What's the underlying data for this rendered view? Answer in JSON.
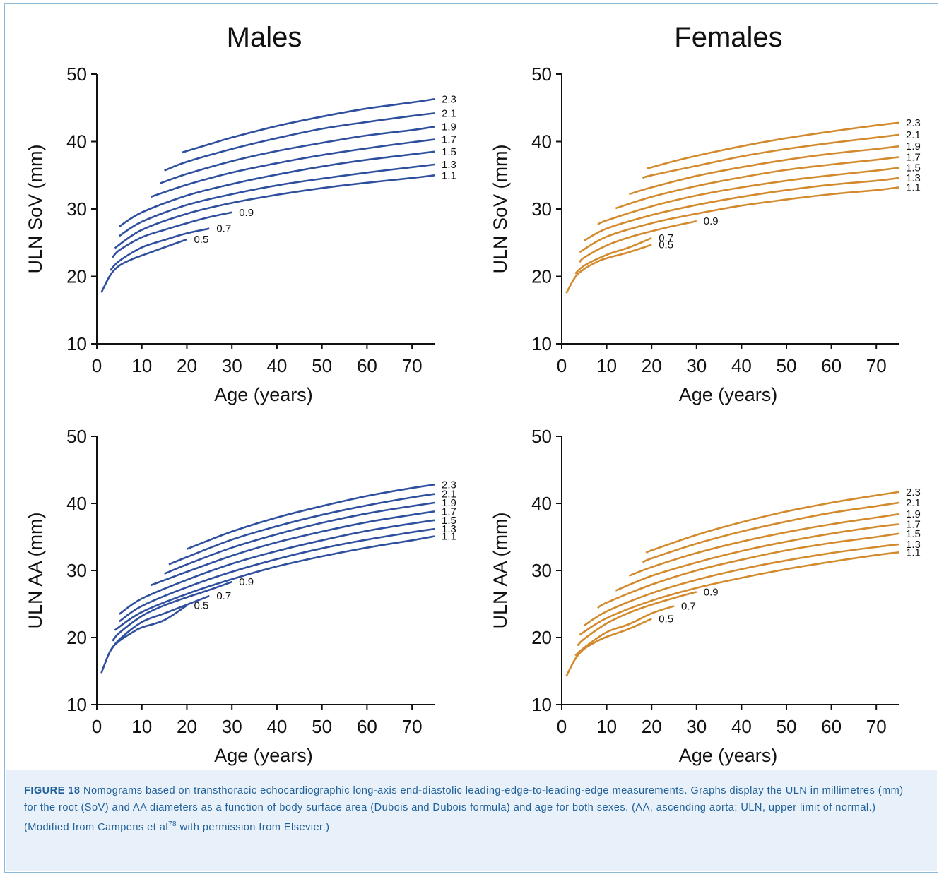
{
  "figure_label": "FIGURE 18",
  "caption": " Nomograms based on transthoracic echocardiographic long-axis end-diastolic leading-edge-to-leading-edge measurements. Graphs display the ULN in millimetres (mm) for the root (SoV) and AA diameters as a function of body surface area (Dubois and Dubois formula) and age for both sexes. (AA, ascending aorta; ULN, upper limit of normal.) (Modified from Campens et al",
  "caption_ref": "78",
  "caption_end": " with permission from Elsevier.)",
  "colors": {
    "males": "#2e4f9e",
    "females": "#d38a2c",
    "caption_bg": "#e8f1f9",
    "caption_text": "#1f5f99"
  },
  "chart_data": [
    {
      "type": "line",
      "title": "Males",
      "xlabel": "Age (years)",
      "ylabel": "ULN SoV (mm)",
      "xlim": [
        0,
        75
      ],
      "ylim": [
        10,
        50
      ],
      "xticks": [
        "0",
        "10",
        "20",
        "30",
        "40",
        "50",
        "60",
        "70"
      ],
      "yticks": [
        "10",
        "20",
        "30",
        "40",
        "50"
      ],
      "color": "#2e4f9e",
      "grid": false,
      "series": [
        {
          "name": "2.3",
          "x": [
            19,
            25,
            30,
            40,
            50,
            60,
            70,
            75
          ],
          "y": [
            38.4,
            39.6,
            40.6,
            42.3,
            43.7,
            44.9,
            45.8,
            46.3
          ]
        },
        {
          "name": "2.1",
          "x": [
            15,
            20,
            30,
            40,
            50,
            60,
            70,
            75
          ],
          "y": [
            35.7,
            37.0,
            38.9,
            40.5,
            41.9,
            42.9,
            43.8,
            44.2
          ]
        },
        {
          "name": "1.9",
          "x": [
            14,
            20,
            30,
            40,
            50,
            60,
            70,
            75
          ],
          "y": [
            33.8,
            35.2,
            37.1,
            38.6,
            39.8,
            40.9,
            41.7,
            42.2
          ]
        },
        {
          "name": "1.7",
          "x": [
            12,
            20,
            30,
            40,
            50,
            60,
            70,
            75
          ],
          "y": [
            31.8,
            33.6,
            35.4,
            36.8,
            38.0,
            39.0,
            39.9,
            40.3
          ]
        },
        {
          "name": "1.5",
          "x": [
            5,
            10,
            20,
            30,
            40,
            50,
            60,
            70,
            75
          ],
          "y": [
            27.4,
            29.5,
            32.0,
            33.7,
            35.1,
            36.3,
            37.3,
            38.1,
            38.5
          ]
        },
        {
          "name": "1.3",
          "x": [
            5,
            10,
            20,
            30,
            40,
            50,
            60,
            70,
            75
          ],
          "y": [
            26.0,
            28.1,
            30.6,
            32.2,
            33.5,
            34.5,
            35.4,
            36.2,
            36.6
          ]
        },
        {
          "name": "1.1",
          "x": [
            4,
            10,
            20,
            30,
            40,
            50,
            60,
            70,
            75
          ],
          "y": [
            24.2,
            26.9,
            29.3,
            30.9,
            32.1,
            33.1,
            33.9,
            34.6,
            35.0
          ]
        },
        {
          "name": "0.9",
          "x": [
            3.5,
            5,
            10,
            15,
            20,
            25,
            30
          ],
          "y": [
            22.8,
            23.9,
            25.8,
            26.9,
            27.9,
            28.8,
            29.5
          ]
        },
        {
          "name": "0.7",
          "x": [
            3,
            5,
            10,
            15,
            20,
            25
          ],
          "y": [
            20.9,
            22.3,
            24.3,
            25.4,
            26.4,
            27.1
          ]
        },
        {
          "name": "0.5",
          "x": [
            1,
            3,
            5,
            8,
            10,
            15,
            20
          ],
          "y": [
            17.6,
            20.2,
            21.6,
            22.6,
            23.1,
            24.3,
            25.5
          ]
        }
      ]
    },
    {
      "type": "line",
      "title": "Females",
      "xlabel": "Age (years)",
      "ylabel": "ULN SoV (mm)",
      "xlim": [
        0,
        75
      ],
      "ylim": [
        10,
        50
      ],
      "xticks": [
        "0",
        "10",
        "20",
        "30",
        "40",
        "50",
        "60",
        "70"
      ],
      "yticks": [
        "10",
        "20",
        "30",
        "40",
        "50"
      ],
      "color": "#d38a2c",
      "grid": false,
      "series": [
        {
          "name": "2.3",
          "x": [
            19,
            25,
            30,
            40,
            50,
            60,
            70,
            75
          ],
          "y": [
            36.0,
            37.1,
            37.9,
            39.3,
            40.5,
            41.5,
            42.4,
            42.8
          ]
        },
        {
          "name": "2.1",
          "x": [
            18,
            20,
            30,
            40,
            50,
            60,
            70,
            75
          ],
          "y": [
            34.6,
            35.0,
            36.4,
            37.8,
            38.9,
            39.8,
            40.6,
            41.0
          ]
        },
        {
          "name": "1.9",
          "x": [
            15,
            20,
            30,
            40,
            50,
            60,
            70,
            75
          ],
          "y": [
            32.2,
            33.2,
            34.9,
            36.2,
            37.3,
            38.2,
            38.9,
            39.3
          ]
        },
        {
          "name": "1.7",
          "x": [
            12,
            20,
            30,
            40,
            50,
            60,
            70,
            75
          ],
          "y": [
            30.1,
            31.8,
            33.4,
            34.7,
            35.8,
            36.6,
            37.3,
            37.7
          ]
        },
        {
          "name": "1.5",
          "x": [
            8,
            10,
            20,
            30,
            40,
            50,
            60,
            70,
            75
          ],
          "y": [
            27.7,
            28.3,
            30.4,
            32.0,
            33.2,
            34.2,
            35.0,
            35.7,
            36.1
          ]
        },
        {
          "name": "1.3",
          "x": [
            5,
            10,
            20,
            30,
            40,
            50,
            60,
            70,
            75
          ],
          "y": [
            25.3,
            27.1,
            29.1,
            30.6,
            31.8,
            32.8,
            33.6,
            34.2,
            34.6
          ]
        },
        {
          "name": "1.1",
          "x": [
            4,
            10,
            20,
            30,
            40,
            50,
            60,
            70,
            75
          ],
          "y": [
            23.6,
            25.9,
            27.9,
            29.3,
            30.5,
            31.4,
            32.2,
            32.8,
            33.2
          ]
        },
        {
          "name": "0.9",
          "x": [
            4,
            5,
            10,
            15,
            20,
            25,
            30
          ],
          "y": [
            22.1,
            22.8,
            24.6,
            25.8,
            26.7,
            27.5,
            28.2
          ]
        },
        {
          "name": "0.7",
          "x": [
            3,
            5,
            10,
            15,
            20
          ],
          "y": [
            20.4,
            21.6,
            23.2,
            24.3,
            25.7
          ]
        },
        {
          "name": "0.5",
          "x": [
            1,
            3,
            5,
            8,
            10,
            15,
            20
          ],
          "y": [
            17.5,
            19.9,
            21.1,
            22.2,
            22.7,
            23.6,
            24.7
          ]
        }
      ]
    },
    {
      "type": "line",
      "title": "",
      "xlabel": "Age (years)",
      "ylabel": "ULN AA (mm)",
      "xlim": [
        0,
        75
      ],
      "ylim": [
        10,
        50
      ],
      "xticks": [
        "0",
        "10",
        "20",
        "30",
        "40",
        "50",
        "60",
        "70"
      ],
      "yticks": [
        "10",
        "20",
        "30",
        "40",
        "50"
      ],
      "color": "#2e4f9e",
      "grid": false,
      "series": [
        {
          "name": "2.3",
          "x": [
            20,
            30,
            40,
            50,
            60,
            70,
            75
          ],
          "y": [
            33.2,
            35.8,
            37.9,
            39.6,
            41.1,
            42.3,
            42.8
          ]
        },
        {
          "name": "2.1",
          "x": [
            16,
            20,
            30,
            40,
            50,
            60,
            70,
            75
          ],
          "y": [
            30.9,
            32.0,
            34.6,
            36.6,
            38.3,
            39.7,
            40.9,
            41.4
          ]
        },
        {
          "name": "1.9",
          "x": [
            15,
            20,
            30,
            40,
            50,
            60,
            70,
            75
          ],
          "y": [
            29.5,
            30.9,
            33.4,
            35.4,
            37.1,
            38.5,
            39.6,
            40.1
          ]
        },
        {
          "name": "1.7",
          "x": [
            12,
            20,
            30,
            40,
            50,
            60,
            70,
            75
          ],
          "y": [
            27.8,
            29.8,
            32.2,
            34.2,
            35.8,
            37.2,
            38.3,
            38.8
          ]
        },
        {
          "name": "1.5",
          "x": [
            5,
            10,
            20,
            30,
            40,
            50,
            60,
            70,
            75
          ],
          "y": [
            23.5,
            25.8,
            28.6,
            31.0,
            32.9,
            34.5,
            35.9,
            37.0,
            37.5
          ]
        },
        {
          "name": "1.3",
          "x": [
            5,
            10,
            20,
            30,
            40,
            50,
            60,
            70,
            75
          ],
          "y": [
            22.4,
            24.7,
            27.5,
            29.8,
            31.7,
            33.3,
            34.6,
            35.7,
            36.2
          ]
        },
        {
          "name": "1.1",
          "x": [
            4,
            10,
            20,
            30,
            40,
            50,
            60,
            70,
            75
          ],
          "y": [
            21.1,
            23.8,
            26.5,
            28.7,
            30.6,
            32.1,
            33.4,
            34.5,
            35.1
          ]
        },
        {
          "name": "0.9",
          "x": [
            3.5,
            5,
            10,
            15,
            20,
            25,
            30
          ],
          "y": [
            19.5,
            20.7,
            23.2,
            24.8,
            26.0,
            27.1,
            28.3
          ]
        },
        {
          "name": "0.7",
          "x": [
            3,
            5,
            10,
            15,
            20,
            25
          ],
          "y": [
            18.0,
            19.7,
            22.3,
            23.6,
            24.9,
            26.2
          ]
        },
        {
          "name": "0.5",
          "x": [
            1,
            3,
            5,
            8,
            10,
            15,
            20
          ],
          "y": [
            14.7,
            18.0,
            19.5,
            20.8,
            21.5,
            22.6,
            24.8
          ]
        }
      ]
    },
    {
      "type": "line",
      "title": "",
      "xlabel": "Age (years)",
      "ylabel": "ULN AA (mm)",
      "xlim": [
        0,
        75
      ],
      "ylim": [
        10,
        50
      ],
      "xticks": [
        "0",
        "10",
        "20",
        "30",
        "40",
        "50",
        "60",
        "70"
      ],
      "yticks": [
        "10",
        "20",
        "30",
        "40",
        "50"
      ],
      "color": "#d38a2c",
      "grid": false,
      "series": [
        {
          "name": "2.3",
          "x": [
            19,
            20,
            30,
            40,
            50,
            60,
            70,
            75
          ],
          "y": [
            32.7,
            33.0,
            35.3,
            37.2,
            38.8,
            40.1,
            41.2,
            41.7
          ]
        },
        {
          "name": "2.1",
          "x": [
            18,
            20,
            30,
            40,
            50,
            60,
            70,
            75
          ],
          "y": [
            31.2,
            31.8,
            34.0,
            35.8,
            37.3,
            38.6,
            39.6,
            40.1
          ]
        },
        {
          "name": "1.9",
          "x": [
            15,
            20,
            30,
            40,
            50,
            60,
            70,
            75
          ],
          "y": [
            29.2,
            30.5,
            32.6,
            34.3,
            35.7,
            36.9,
            37.9,
            38.4
          ]
        },
        {
          "name": "1.7",
          "x": [
            12,
            20,
            30,
            40,
            50,
            60,
            70,
            75
          ],
          "y": [
            27.0,
            29.2,
            31.2,
            32.9,
            34.3,
            35.5,
            36.5,
            36.9
          ]
        },
        {
          "name": "1.5",
          "x": [
            8,
            10,
            20,
            30,
            40,
            50,
            60,
            70,
            75
          ],
          "y": [
            24.4,
            25.2,
            27.9,
            30.0,
            31.6,
            33.0,
            34.1,
            35.0,
            35.5
          ]
        },
        {
          "name": "1.3",
          "x": [
            5,
            10,
            20,
            30,
            40,
            50,
            60,
            70,
            75
          ],
          "y": [
            21.8,
            23.9,
            26.6,
            28.6,
            30.2,
            31.5,
            32.6,
            33.5,
            33.9
          ]
        },
        {
          "name": "1.1",
          "x": [
            4,
            10,
            20,
            30,
            40,
            50,
            60,
            70,
            75
          ],
          "y": [
            20.4,
            22.9,
            25.5,
            27.4,
            28.9,
            30.2,
            31.3,
            32.3,
            32.7
          ]
        },
        {
          "name": "0.9",
          "x": [
            3.5,
            5,
            10,
            15,
            20,
            25,
            30
          ],
          "y": [
            18.8,
            19.8,
            22.1,
            23.7,
            24.9,
            25.9,
            26.8
          ]
        },
        {
          "name": "0.7",
          "x": [
            3,
            5,
            10,
            15,
            20,
            25
          ],
          "y": [
            17.3,
            18.5,
            20.8,
            22.0,
            23.6,
            24.7
          ]
        },
        {
          "name": "0.5",
          "x": [
            1,
            3,
            5,
            8,
            10,
            15,
            20
          ],
          "y": [
            14.2,
            16.8,
            18.3,
            19.5,
            20.1,
            21.3,
            22.8
          ]
        }
      ]
    }
  ]
}
